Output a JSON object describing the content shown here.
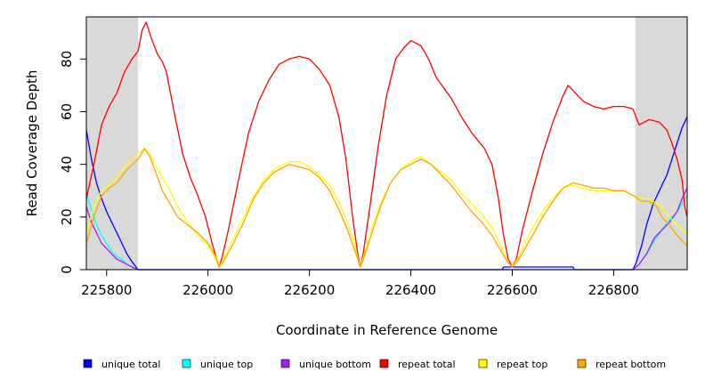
{
  "chart_data": {
    "type": "line",
    "title": "",
    "xlabel": "Coordinate in Reference Genome",
    "ylabel": "Read Coverage Depth",
    "xlim": [
      225760,
      226945
    ],
    "ylim": [
      0,
      96
    ],
    "x_ticks": [
      225800,
      226000,
      226200,
      226400,
      226600,
      226800
    ],
    "y_ticks": [
      0,
      20,
      40,
      60,
      80
    ],
    "x_tick_labels": [
      "225800",
      "226000",
      "226200",
      "226400",
      "226600",
      "226800"
    ],
    "y_tick_labels": [
      "0",
      "20",
      "40",
      "60",
      "80"
    ],
    "grid": false,
    "shaded_regions": [
      {
        "from": 225760,
        "to": 225862,
        "color": "#d9d9d9"
      },
      {
        "from": 226843,
        "to": 226945,
        "color": "#d9d9d9"
      }
    ],
    "legend_position": "bottom",
    "series": [
      {
        "name": "unique total",
        "color": "#0000ff",
        "points": [
          [
            225760,
            53
          ],
          [
            225770,
            42
          ],
          [
            225780,
            33
          ],
          [
            225790,
            27
          ],
          [
            225800,
            22
          ],
          [
            225810,
            18
          ],
          [
            225820,
            14
          ],
          [
            225830,
            10
          ],
          [
            225840,
            6
          ],
          [
            225850,
            3
          ],
          [
            225858,
            1
          ],
          [
            225862,
            0
          ],
          [
            226580,
            0
          ],
          [
            226583,
            1
          ],
          [
            226720,
            1
          ],
          [
            226722,
            0
          ],
          [
            226838,
            0
          ],
          [
            226845,
            3
          ],
          [
            226855,
            9
          ],
          [
            226865,
            17
          ],
          [
            226878,
            25
          ],
          [
            226890,
            30
          ],
          [
            226905,
            36
          ],
          [
            226915,
            42
          ],
          [
            226925,
            48
          ],
          [
            226935,
            54
          ],
          [
            226945,
            58
          ]
        ]
      },
      {
        "name": "unique top",
        "color": "#00ffff",
        "points": [
          [
            225760,
            29
          ],
          [
            225770,
            23
          ],
          [
            225780,
            17
          ],
          [
            225790,
            13
          ],
          [
            225800,
            10
          ],
          [
            225810,
            7
          ],
          [
            225820,
            5
          ],
          [
            225830,
            4
          ],
          [
            225840,
            2
          ],
          [
            225850,
            1
          ],
          [
            225862,
            0
          ],
          [
            226838,
            0
          ],
          [
            226850,
            2
          ],
          [
            226865,
            6
          ],
          [
            226880,
            11
          ],
          [
            226895,
            15
          ],
          [
            226910,
            19
          ],
          [
            226925,
            22
          ],
          [
            226935,
            25
          ],
          [
            226945,
            28
          ]
        ]
      },
      {
        "name": "unique bottom",
        "color": "#a020f0",
        "points": [
          [
            225760,
            24
          ],
          [
            225770,
            18
          ],
          [
            225780,
            14
          ],
          [
            225790,
            10
          ],
          [
            225800,
            8
          ],
          [
            225810,
            6
          ],
          [
            225820,
            4
          ],
          [
            225830,
            3
          ],
          [
            225840,
            2
          ],
          [
            225850,
            1
          ],
          [
            225862,
            0
          ],
          [
            226838,
            0
          ],
          [
            226850,
            2
          ],
          [
            226865,
            6
          ],
          [
            226880,
            12
          ],
          [
            226895,
            15
          ],
          [
            226910,
            18
          ],
          [
            226925,
            22
          ],
          [
            226935,
            27
          ],
          [
            226945,
            31
          ]
        ]
      },
      {
        "name": "repeat total",
        "color": "#ff0000",
        "points": [
          [
            225760,
            27
          ],
          [
            225775,
            40
          ],
          [
            225790,
            55
          ],
          [
            225805,
            62
          ],
          [
            225820,
            67
          ],
          [
            225835,
            75
          ],
          [
            225850,
            80
          ],
          [
            225862,
            83
          ],
          [
            225870,
            91
          ],
          [
            225878,
            94
          ],
          [
            225888,
            88
          ],
          [
            225900,
            82
          ],
          [
            225910,
            79
          ],
          [
            225918,
            75
          ],
          [
            225925,
            68
          ],
          [
            225935,
            58
          ],
          [
            225950,
            44
          ],
          [
            225965,
            35
          ],
          [
            225980,
            28
          ],
          [
            225995,
            20
          ],
          [
            226008,
            10
          ],
          [
            226017,
            4
          ],
          [
            226022,
            1
          ],
          [
            226028,
            5
          ],
          [
            226040,
            15
          ],
          [
            226060,
            34
          ],
          [
            226080,
            52
          ],
          [
            226100,
            64
          ],
          [
            226120,
            72
          ],
          [
            226140,
            78
          ],
          [
            226160,
            80
          ],
          [
            226180,
            81
          ],
          [
            226200,
            80
          ],
          [
            226220,
            76
          ],
          [
            226240,
            70
          ],
          [
            226258,
            58
          ],
          [
            226272,
            42
          ],
          [
            226285,
            20
          ],
          [
            226296,
            5
          ],
          [
            226300,
            1
          ],
          [
            226306,
            6
          ],
          [
            226318,
            22
          ],
          [
            226335,
            46
          ],
          [
            226352,
            66
          ],
          [
            226370,
            80
          ],
          [
            226385,
            84
          ],
          [
            226400,
            87
          ],
          [
            226420,
            85
          ],
          [
            226435,
            80
          ],
          [
            226450,
            73
          ],
          [
            226465,
            69
          ],
          [
            226480,
            65
          ],
          [
            226500,
            58
          ],
          [
            226520,
            52
          ],
          [
            226545,
            46
          ],
          [
            226560,
            40
          ],
          [
            226572,
            28
          ],
          [
            226582,
            14
          ],
          [
            226592,
            4
          ],
          [
            226600,
            1
          ],
          [
            226608,
            4
          ],
          [
            226620,
            15
          ],
          [
            226640,
            30
          ],
          [
            226660,
            44
          ],
          [
            226680,
            56
          ],
          [
            226700,
            66
          ],
          [
            226710,
            70
          ],
          [
            226720,
            68
          ],
          [
            226740,
            64
          ],
          [
            226760,
            62
          ],
          [
            226780,
            61
          ],
          [
            226800,
            62
          ],
          [
            226820,
            62
          ],
          [
            226838,
            61
          ],
          [
            226850,
            55
          ],
          [
            226870,
            57
          ],
          [
            226890,
            56
          ],
          [
            226905,
            53
          ],
          [
            226915,
            48
          ],
          [
            226925,
            42
          ],
          [
            226935,
            34
          ],
          [
            226940,
            24
          ],
          [
            226945,
            20
          ]
        ]
      },
      {
        "name": "repeat top",
        "color": "#ffff00",
        "points": [
          [
            225760,
            14
          ],
          [
            225775,
            24
          ],
          [
            225790,
            30
          ],
          [
            225805,
            32
          ],
          [
            225820,
            35
          ],
          [
            225840,
            40
          ],
          [
            225862,
            44
          ],
          [
            225875,
            46
          ],
          [
            225885,
            44
          ],
          [
            225895,
            40
          ],
          [
            225910,
            35
          ],
          [
            225925,
            30
          ],
          [
            225940,
            24
          ],
          [
            225960,
            18
          ],
          [
            225980,
            13
          ],
          [
            226000,
            9
          ],
          [
            226015,
            4
          ],
          [
            226022,
            1
          ],
          [
            226030,
            4
          ],
          [
            226050,
            12
          ],
          [
            226070,
            20
          ],
          [
            226090,
            28
          ],
          [
            226110,
            34
          ],
          [
            226130,
            38
          ],
          [
            226160,
            41
          ],
          [
            226180,
            41
          ],
          [
            226200,
            39
          ],
          [
            226220,
            36
          ],
          [
            226240,
            32
          ],
          [
            226260,
            25
          ],
          [
            226275,
            18
          ],
          [
            226288,
            10
          ],
          [
            226297,
            3
          ],
          [
            226300,
            1
          ],
          [
            226305,
            4
          ],
          [
            226320,
            14
          ],
          [
            226340,
            25
          ],
          [
            226360,
            33
          ],
          [
            226380,
            38
          ],
          [
            226400,
            41
          ],
          [
            226420,
            43
          ],
          [
            226440,
            40
          ],
          [
            226460,
            37
          ],
          [
            226480,
            34
          ],
          [
            226500,
            29
          ],
          [
            226520,
            25
          ],
          [
            226540,
            21
          ],
          [
            226560,
            16
          ],
          [
            226575,
            10
          ],
          [
            226590,
            3
          ],
          [
            226600,
            1
          ],
          [
            226610,
            4
          ],
          [
            226625,
            10
          ],
          [
            226640,
            16
          ],
          [
            226660,
            22
          ],
          [
            226680,
            27
          ],
          [
            226700,
            31
          ],
          [
            226720,
            32
          ],
          [
            226740,
            31
          ],
          [
            226760,
            30
          ],
          [
            226780,
            30
          ],
          [
            226800,
            30
          ],
          [
            226820,
            30
          ],
          [
            226840,
            28
          ],
          [
            226855,
            27
          ],
          [
            226870,
            27
          ],
          [
            226885,
            25
          ],
          [
            226895,
            24
          ],
          [
            226910,
            20
          ],
          [
            226925,
            17
          ],
          [
            226935,
            15
          ],
          [
            226945,
            13
          ]
        ]
      },
      {
        "name": "repeat bottom",
        "color": "#ffa500",
        "points": [
          [
            225760,
            10
          ],
          [
            225775,
            20
          ],
          [
            225790,
            28
          ],
          [
            225805,
            31
          ],
          [
            225820,
            33
          ],
          [
            225840,
            38
          ],
          [
            225862,
            42
          ],
          [
            225875,
            46
          ],
          [
            225885,
            43
          ],
          [
            225895,
            38
          ],
          [
            225910,
            30
          ],
          [
            225925,
            25
          ],
          [
            225940,
            20
          ],
          [
            225960,
            17
          ],
          [
            225980,
            14
          ],
          [
            226000,
            10
          ],
          [
            226015,
            5
          ],
          [
            226022,
            1
          ],
          [
            226030,
            3
          ],
          [
            226050,
            10
          ],
          [
            226070,
            18
          ],
          [
            226090,
            27
          ],
          [
            226110,
            33
          ],
          [
            226130,
            37
          ],
          [
            226160,
            40
          ],
          [
            226180,
            39
          ],
          [
            226200,
            38
          ],
          [
            226220,
            35
          ],
          [
            226240,
            30
          ],
          [
            226260,
            22
          ],
          [
            226275,
            15
          ],
          [
            226288,
            8
          ],
          [
            226297,
            3
          ],
          [
            226300,
            1
          ],
          [
            226305,
            3
          ],
          [
            226320,
            12
          ],
          [
            226340,
            24
          ],
          [
            226360,
            33
          ],
          [
            226380,
            38
          ],
          [
            226400,
            40
          ],
          [
            226420,
            42
          ],
          [
            226440,
            40
          ],
          [
            226460,
            36
          ],
          [
            226480,
            32
          ],
          [
            226500,
            27
          ],
          [
            226520,
            22
          ],
          [
            226540,
            18
          ],
          [
            226560,
            13
          ],
          [
            226575,
            8
          ],
          [
            226590,
            3
          ],
          [
            226600,
            1
          ],
          [
            226610,
            3
          ],
          [
            226625,
            8
          ],
          [
            226640,
            13
          ],
          [
            226660,
            20
          ],
          [
            226680,
            26
          ],
          [
            226700,
            31
          ],
          [
            226720,
            33
          ],
          [
            226740,
            32
          ],
          [
            226760,
            31
          ],
          [
            226780,
            31
          ],
          [
            226800,
            30
          ],
          [
            226820,
            30
          ],
          [
            226840,
            28
          ],
          [
            226855,
            26
          ],
          [
            226870,
            26
          ],
          [
            226885,
            24
          ],
          [
            226895,
            20
          ],
          [
            226910,
            17
          ],
          [
            226925,
            13
          ],
          [
            226935,
            11
          ],
          [
            226945,
            9
          ]
        ]
      }
    ]
  }
}
